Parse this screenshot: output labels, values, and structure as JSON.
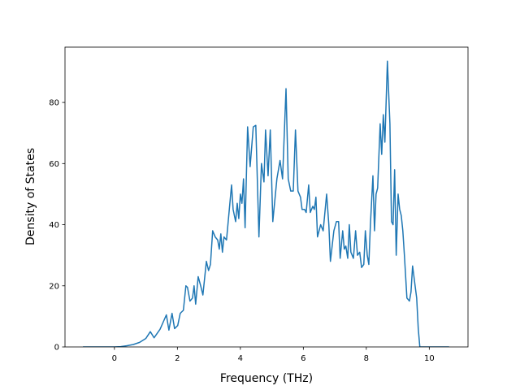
{
  "chart_data": {
    "type": "line",
    "xlabel": "Frequency (THz)",
    "ylabel": "Density of States",
    "x": [
      -1.0,
      0.0,
      0.2,
      0.4,
      0.6,
      0.8,
      1.0,
      1.14,
      1.26,
      1.45,
      1.65,
      1.73,
      1.83,
      1.91,
      2.01,
      2.09,
      2.19,
      2.27,
      2.32,
      2.4,
      2.48,
      2.53,
      2.58,
      2.66,
      2.74,
      2.81,
      2.92,
      2.99,
      3.05,
      3.12,
      3.2,
      3.28,
      3.33,
      3.38,
      3.43,
      3.48,
      3.56,
      3.64,
      3.72,
      3.77,
      3.85,
      3.9,
      3.95,
      4.0,
      4.05,
      4.1,
      4.15,
      4.23,
      4.31,
      4.41,
      4.49,
      4.59,
      4.67,
      4.75,
      4.8,
      4.88,
      4.95,
      5.03,
      5.16,
      5.26,
      5.34,
      5.45,
      5.52,
      5.6,
      5.68,
      5.75,
      5.83,
      5.91,
      5.96,
      6.04,
      6.09,
      6.17,
      6.22,
      6.3,
      6.35,
      6.4,
      6.45,
      6.55,
      6.63,
      6.74,
      6.81,
      6.86,
      6.97,
      7.05,
      7.12,
      7.17,
      7.25,
      7.3,
      7.35,
      7.41,
      7.46,
      7.51,
      7.59,
      7.66,
      7.72,
      7.79,
      7.85,
      7.92,
      7.97,
      8.03,
      8.08,
      8.13,
      8.21,
      8.26,
      8.31,
      8.36,
      8.44,
      8.49,
      8.54,
      8.59,
      8.67,
      8.75,
      8.8,
      8.85,
      8.9,
      8.95,
      9.01,
      9.06,
      9.11,
      9.16,
      9.21,
      9.29,
      9.37,
      9.42,
      9.47,
      9.55,
      9.6,
      9.65,
      9.7,
      10.63
    ],
    "values": [
      0,
      0,
      0.1,
      0.4,
      0.8,
      1.5,
      2.8,
      5,
      3,
      5.8,
      10.5,
      5.5,
      11,
      6,
      7,
      11,
      12,
      20,
      19.5,
      15,
      16,
      20,
      14,
      23,
      20,
      17,
      28,
      25,
      27,
      38,
      36,
      35,
      32,
      37,
      31,
      36,
      35,
      44,
      53,
      45,
      41,
      47,
      42,
      50,
      47,
      55,
      39,
      72,
      59,
      72,
      72.5,
      36,
      60,
      54,
      71,
      56,
      71,
      41,
      55,
      61,
      55,
      84.5,
      55,
      51,
      51,
      71,
      51,
      49,
      45,
      45,
      44,
      53,
      44,
      46,
      45,
      49,
      36,
      40,
      38,
      50,
      40,
      28,
      38,
      41,
      41,
      29,
      38,
      32,
      33,
      29,
      40,
      31,
      29,
      38,
      30,
      31,
      26,
      27,
      38,
      30,
      27,
      40,
      56,
      38,
      50,
      52,
      73,
      63,
      76,
      67,
      93.5,
      73,
      41,
      40,
      58,
      30,
      50,
      45,
      43,
      38,
      30,
      16,
      15,
      18,
      26.5,
      20,
      16,
      6,
      0,
      0
    ],
    "color": "#1f77b4",
    "xlim": [
      -1.57,
      11.23
    ],
    "xticks": [
      0,
      2,
      4,
      6,
      8,
      10
    ],
    "ylim": [
      0,
      98.1
    ],
    "yticks": [
      0,
      20,
      40,
      60,
      80
    ]
  }
}
